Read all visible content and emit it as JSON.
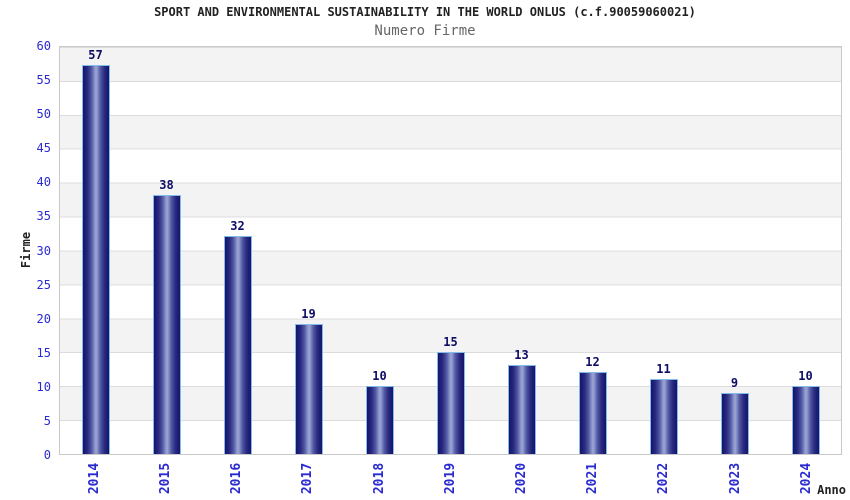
{
  "header": {
    "title": "SPORT AND ENVIRONMENTAL SUSTAINABILITY IN THE WORLD ONLUS (c.f.90059060021)",
    "subtitle": "Numero Firme"
  },
  "chart_data": {
    "type": "bar",
    "title": "SPORT AND ENVIRONMENTAL SUSTAINABILITY IN THE WORLD ONLUS (c.f.90059060021)",
    "subtitle": "Numero Firme",
    "categories": [
      "2014",
      "2015",
      "2016",
      "2017",
      "2018",
      "2019",
      "2020",
      "2021",
      "2022",
      "2023",
      "2024"
    ],
    "values": [
      57,
      38,
      32,
      19,
      10,
      15,
      13,
      12,
      11,
      9,
      10
    ],
    "xlabel": "Anno",
    "ylabel": "Firme",
    "ylim": [
      0,
      60
    ],
    "ytick_step": 5,
    "ytick_labels": [
      "0",
      "5",
      "10",
      "15",
      "20",
      "25",
      "30",
      "35",
      "40",
      "45",
      "50",
      "55",
      "60"
    ],
    "grid": "horizontal gridlines with alternating gray/white bands",
    "legend": "none",
    "bar_labels_shown": true,
    "colors": {
      "bar_edge": "#15156b",
      "bar_center": "#9aa2d4",
      "bar_border": "#82bbe7",
      "value_label": "#0d0d66",
      "tick_label": "#2a2ad0",
      "axis_label": "#222222",
      "title": "#222222",
      "subtitle": "#666666",
      "band_gray": "#f3f3f3",
      "gridline": "#dcdcdc",
      "plot_border": "#c9c9c9"
    }
  }
}
